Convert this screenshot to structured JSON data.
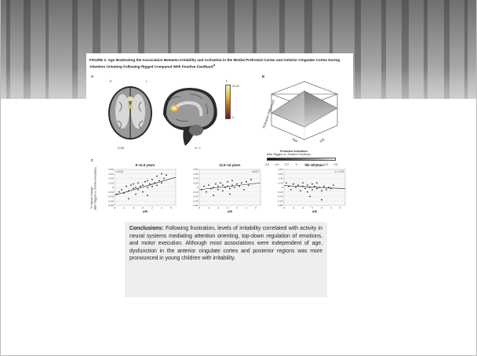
{
  "figure": {
    "title": "FIGURE 2. Age Moderating the Association Between Irritability and Activation in the Medial Prefrontal Cortex and Anterior Cingulate Cortex During Attention Orienting Following Rigged Compared With Positive Feedback",
    "title_superscript": "a",
    "panel_a": {
      "letter": "A",
      "orient_left": "R",
      "orient_right": "L",
      "slice_axial": "Z=26",
      "slice_sagittal": "X=-7",
      "colorbar_top": "F",
      "colorbar_max": "25.42",
      "colorbar_min": "0"
    },
    "panel_b": {
      "letter": "B",
      "axis_activation": "Activation Difference",
      "axis_age": "Age",
      "axis_ari": "ARI",
      "legend_title_1": "Predicted Activation:",
      "legend_title_2": "After Rigged vs. Positive Feedback",
      "legend_ticks": [
        "-0.6",
        "-0.4",
        "-0.2",
        "0",
        "0.2",
        "0.4",
        "0.6",
        "0.8"
      ]
    },
    "panel_c": {
      "letter": "C",
      "ylabel_1": "% Signal Change",
      "ylabel_2": "(After Rigged vs. Positive Feedback)",
      "xlabel": "ARI"
    }
  },
  "chart_data": [
    {
      "type": "scatter",
      "title": "8–11.5 years",
      "annotation": "r=0.41",
      "xlabel": "ARI",
      "ylabel": "% Signal Change (After Rigged vs. Positive Feedback)",
      "xlim": [
        -6,
        7
      ],
      "ylim": [
        -0.8,
        0.8
      ],
      "x_ticks": [
        "-6",
        "-4",
        "-2",
        "0",
        "2",
        "4",
        "6"
      ],
      "y_ticks": [
        "0.80",
        "0.60",
        "0.40",
        "0.20",
        "0",
        "-0.20",
        "-0.40",
        "-0.60",
        "-0.80"
      ],
      "grid": true,
      "fit_line": {
        "x": [
          -6,
          7
        ],
        "y": [
          -0.35,
          0.45
        ]
      },
      "points": [
        {
          "x": -5.5,
          "y": -0.3
        },
        {
          "x": -5,
          "y": -0.2
        },
        {
          "x": -4.5,
          "y": -0.1
        },
        {
          "x": -4,
          "y": -0.25
        },
        {
          "x": -3.5,
          "y": 0.05
        },
        {
          "x": -3,
          "y": -0.15
        },
        {
          "x": -2.5,
          "y": 0.1
        },
        {
          "x": -2,
          "y": -0.05
        },
        {
          "x": -2,
          "y": 0.15
        },
        {
          "x": -1.5,
          "y": 0.0
        },
        {
          "x": -1,
          "y": 0.2
        },
        {
          "x": -1,
          "y": -0.1
        },
        {
          "x": -0.5,
          "y": 0.05
        },
        {
          "x": 0,
          "y": 0.1
        },
        {
          "x": 0,
          "y": -0.2
        },
        {
          "x": 0.5,
          "y": 0.25
        },
        {
          "x": 1,
          "y": 0.0
        },
        {
          "x": 1,
          "y": 0.3
        },
        {
          "x": 1.5,
          "y": 0.15
        },
        {
          "x": 2,
          "y": 0.35
        },
        {
          "x": 2,
          "y": 0.05
        },
        {
          "x": 2.5,
          "y": 0.2
        },
        {
          "x": 3,
          "y": 0.5
        },
        {
          "x": 3,
          "y": 0.1
        },
        {
          "x": 3.5,
          "y": 0.3
        },
        {
          "x": 4,
          "y": 0.6
        },
        {
          "x": 4,
          "y": 0.2
        },
        {
          "x": 4.5,
          "y": 0.4
        },
        {
          "x": 5,
          "y": 0.55
        },
        {
          "x": -3,
          "y": -0.5
        },
        {
          "x": -1.5,
          "y": -0.3
        },
        {
          "x": 1,
          "y": -0.35
        }
      ]
    },
    {
      "type": "scatter",
      "title": "11.5–14 years",
      "annotation": "r=0.27",
      "xlabel": "ARI",
      "xlim": [
        -6,
        7
      ],
      "ylim": [
        -0.8,
        0.8
      ],
      "x_ticks": [
        "-6",
        "-4",
        "-2",
        "0",
        "2",
        "4",
        "6"
      ],
      "y_ticks": [
        "0.80",
        "0.60",
        "0.40",
        "0.20",
        "0",
        "-0.20",
        "-0.40",
        "-0.60",
        "-0.80"
      ],
      "grid": true,
      "fit_line": {
        "x": [
          -6,
          7
        ],
        "y": [
          -0.1,
          0.2
        ]
      },
      "points": [
        {
          "x": -5.5,
          "y": -0.1
        },
        {
          "x": -5,
          "y": 0.05
        },
        {
          "x": -4.5,
          "y": -0.2
        },
        {
          "x": -4,
          "y": 0.1
        },
        {
          "x": -3.5,
          "y": -0.05
        },
        {
          "x": -3,
          "y": 0.0
        },
        {
          "x": -2.5,
          "y": 0.15
        },
        {
          "x": -2,
          "y": -0.1
        },
        {
          "x": -2,
          "y": 0.05
        },
        {
          "x": -1.5,
          "y": 0.2
        },
        {
          "x": -1,
          "y": -0.15
        },
        {
          "x": -1,
          "y": 0.1
        },
        {
          "x": -0.5,
          "y": 0.0
        },
        {
          "x": 0,
          "y": 0.05
        },
        {
          "x": 0,
          "y": 0.25
        },
        {
          "x": 0.5,
          "y": -0.05
        },
        {
          "x": 1,
          "y": 0.1
        },
        {
          "x": 1,
          "y": 0.3
        },
        {
          "x": 1.5,
          "y": 0.0
        },
        {
          "x": 2,
          "y": 0.15
        },
        {
          "x": 2.5,
          "y": 0.05
        },
        {
          "x": 3,
          "y": 0.2
        },
        {
          "x": 3.5,
          "y": -0.1
        },
        {
          "x": 4,
          "y": 0.25
        },
        {
          "x": 4.5,
          "y": 0.1
        },
        {
          "x": 5,
          "y": 0.35
        },
        {
          "x": -3,
          "y": -0.35
        },
        {
          "x": 0.5,
          "y": -0.3
        }
      ]
    },
    {
      "type": "scatter",
      "title": "14–18 years",
      "annotation": "r=−0.13",
      "xlabel": "ARI",
      "xlim": [
        -6,
        7
      ],
      "ylim": [
        -0.8,
        0.8
      ],
      "x_ticks": [
        "-6",
        "-4",
        "-2",
        "0",
        "2",
        "4",
        "6"
      ],
      "y_ticks": [
        "0.80",
        "0.60",
        "0.40",
        "0.20",
        "0",
        "-0.20",
        "-0.40",
        "-0.60",
        "-0.80"
      ],
      "grid": true,
      "fit_line": {
        "x": [
          -6,
          7
        ],
        "y": [
          0.08,
          -0.06
        ]
      },
      "points": [
        {
          "x": -5.5,
          "y": 0.2
        },
        {
          "x": -5,
          "y": 0.05
        },
        {
          "x": -4.5,
          "y": -0.1
        },
        {
          "x": -4,
          "y": 0.15
        },
        {
          "x": -3.5,
          "y": 0.0
        },
        {
          "x": -3,
          "y": 0.1
        },
        {
          "x": -2.5,
          "y": -0.15
        },
        {
          "x": -2,
          "y": 0.05
        },
        {
          "x": -2,
          "y": 0.2
        },
        {
          "x": -1.5,
          "y": -0.05
        },
        {
          "x": -1,
          "y": 0.1
        },
        {
          "x": -1,
          "y": -0.2
        },
        {
          "x": -0.5,
          "y": 0.0
        },
        {
          "x": 0,
          "y": 0.15
        },
        {
          "x": 0,
          "y": -0.1
        },
        {
          "x": 0.5,
          "y": 0.05
        },
        {
          "x": 1,
          "y": -0.05
        },
        {
          "x": 1,
          "y": 0.2
        },
        {
          "x": 1.5,
          "y": 0.0
        },
        {
          "x": 2,
          "y": -0.15
        },
        {
          "x": 2.5,
          "y": 0.05
        },
        {
          "x": 3,
          "y": -0.1
        },
        {
          "x": 3.5,
          "y": 0.0
        },
        {
          "x": 4,
          "y": -0.05
        },
        {
          "x": 4.5,
          "y": 0.1
        },
        {
          "x": -0.5,
          "y": -0.4
        },
        {
          "x": 2,
          "y": -0.55
        }
      ]
    }
  ],
  "conclusions": {
    "lead": "Conclusions:",
    "text": " Following frustration, levels of irritability correlated with activity in neural systems mediating attention orienting, top-down regulation of emotions, and motor execution. Although most associations were independent of age, dysfunction in the anterior cingulate cortex and posterior regions was more pronounced in young children with irritability."
  }
}
